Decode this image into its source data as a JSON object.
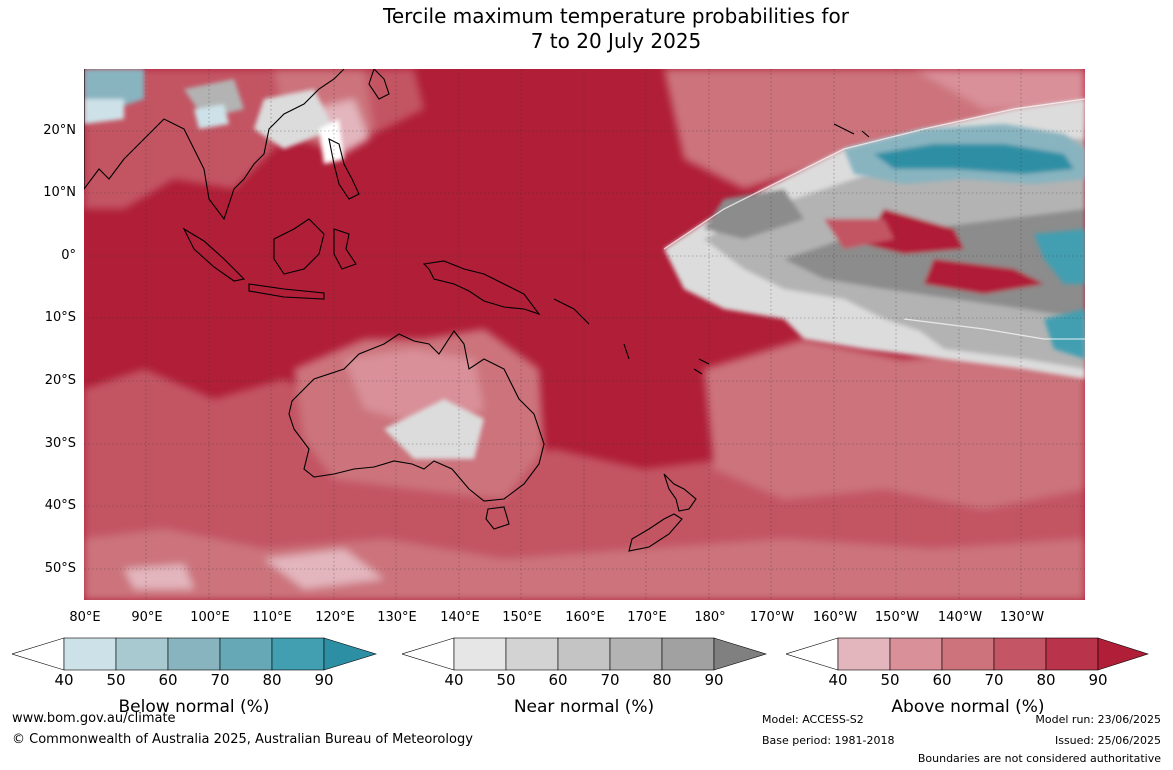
{
  "title_line1": "Tercile maximum temperature probabilities for",
  "title_line2": "7 to 20 July 2025",
  "lat_labels": [
    "20°N",
    "10°N",
    "0°",
    "10°S",
    "20°S",
    "30°S",
    "40°S",
    "50°S"
  ],
  "lon_labels": [
    "80°E",
    "90°E",
    "100°E",
    "110°E",
    "120°E",
    "130°E",
    "140°E",
    "150°E",
    "160°E",
    "170°E",
    "180°",
    "170°W",
    "160°W",
    "150°W",
    "140°W",
    "130°W"
  ],
  "legends": [
    {
      "title": "Below normal (%)",
      "ticks": [
        "40",
        "50",
        "60",
        "70",
        "80",
        "90"
      ],
      "colors": [
        "#ffffff",
        "#cde2e8",
        "#a9c9d0",
        "#88b4c0",
        "#66a8b5",
        "#429fb1",
        "#2d8fa4"
      ]
    },
    {
      "title": "Near normal (%)",
      "ticks": [
        "40",
        "50",
        "60",
        "70",
        "80",
        "90"
      ],
      "colors": [
        "#ffffff",
        "#e6e6e6",
        "#d3d3d3",
        "#c4c4c4",
        "#b3b3b3",
        "#a1a1a1",
        "#808080"
      ]
    },
    {
      "title": "Above normal (%)",
      "ticks": [
        "40",
        "50",
        "60",
        "70",
        "80",
        "90"
      ],
      "colors": [
        "#ffffff",
        "#e3b5bd",
        "#d99099",
        "#cc737c",
        "#c35564",
        "#b9344a",
        "#b01e37"
      ]
    }
  ],
  "footer": {
    "url": "www.bom.gov.au/climate",
    "copyright": "© Commonwealth of Australia 2025, Australian Bureau of Meteorology",
    "model": "Model: ACCESS-S2",
    "base_period": "Base period: 1981-2018",
    "model_run": "Model run: 23/06/2025",
    "issued": "Issued: 25/06/2025",
    "disclaimer": "Boundaries are not considered authoritative"
  },
  "map_colors": {
    "ocean_base": "#b01e37",
    "above_70": "#c35564",
    "above_60": "#cc737c",
    "above_50": "#d99099",
    "above_40": "#e3b5bd",
    "near_high": "#8c8c8c",
    "near_mid": "#b3b3b3",
    "near_low": "#dcdcdc",
    "below_high": "#2d8fa4",
    "below_mid": "#88b4c0",
    "below_low": "#cde2e8"
  }
}
